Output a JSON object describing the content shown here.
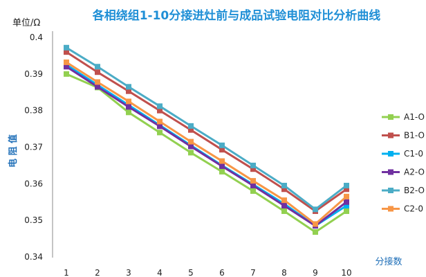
{
  "chart_data": {
    "type": "line",
    "title": "各相绕组1-10分接进灶前与成品试验电阻对比分析曲线",
    "xlabel": "分接数",
    "ylabel": "电 阻 值",
    "y_unit": "单位/Ω",
    "categories": [
      "1",
      "2",
      "3",
      "4",
      "5",
      "6",
      "7",
      "8",
      "9",
      "10"
    ],
    "ylim": [
      0.34,
      0.4
    ],
    "yticks": [
      "0.34",
      "0.35",
      "0.36",
      "0.37",
      "0.38",
      "0.39",
      "0.4"
    ],
    "grid": false,
    "legend_position": "right",
    "series": [
      {
        "name": "A1-O",
        "color": "#92d050",
        "values": [
          0.39,
          0.3863,
          0.3795,
          0.374,
          0.3685,
          0.3633,
          0.358,
          0.3525,
          0.3468,
          0.3525
        ]
      },
      {
        "name": "B1-O",
        "color": "#c0504d",
        "values": [
          0.396,
          0.3905,
          0.3853,
          0.38,
          0.3747,
          0.3693,
          0.364,
          0.3585,
          0.3525,
          0.3585
        ]
      },
      {
        "name": "C1-0",
        "color": "#00b0f0",
        "values": [
          0.3925,
          0.387,
          0.3815,
          0.376,
          0.3705,
          0.365,
          0.3598,
          0.3545,
          0.3485,
          0.354
        ]
      },
      {
        "name": "A2-O",
        "color": "#7030a0",
        "values": [
          0.392,
          0.3865,
          0.381,
          0.3757,
          0.3702,
          0.3648,
          0.3595,
          0.354,
          0.3485,
          0.355
        ]
      },
      {
        "name": "B2-O",
        "color": "#4bacc6",
        "values": [
          0.3972,
          0.392,
          0.3865,
          0.3812,
          0.3758,
          0.3705,
          0.365,
          0.3595,
          0.353,
          0.3595
        ]
      },
      {
        "name": "C2-0",
        "color": "#f79646",
        "values": [
          0.3932,
          0.3878,
          0.3825,
          0.377,
          0.3715,
          0.3662,
          0.3608,
          0.3555,
          0.349,
          0.3565
        ]
      }
    ]
  },
  "colors": {
    "title": "#1f8fd6",
    "ylabel": "#1f6fb8",
    "axis": "#888888"
  }
}
